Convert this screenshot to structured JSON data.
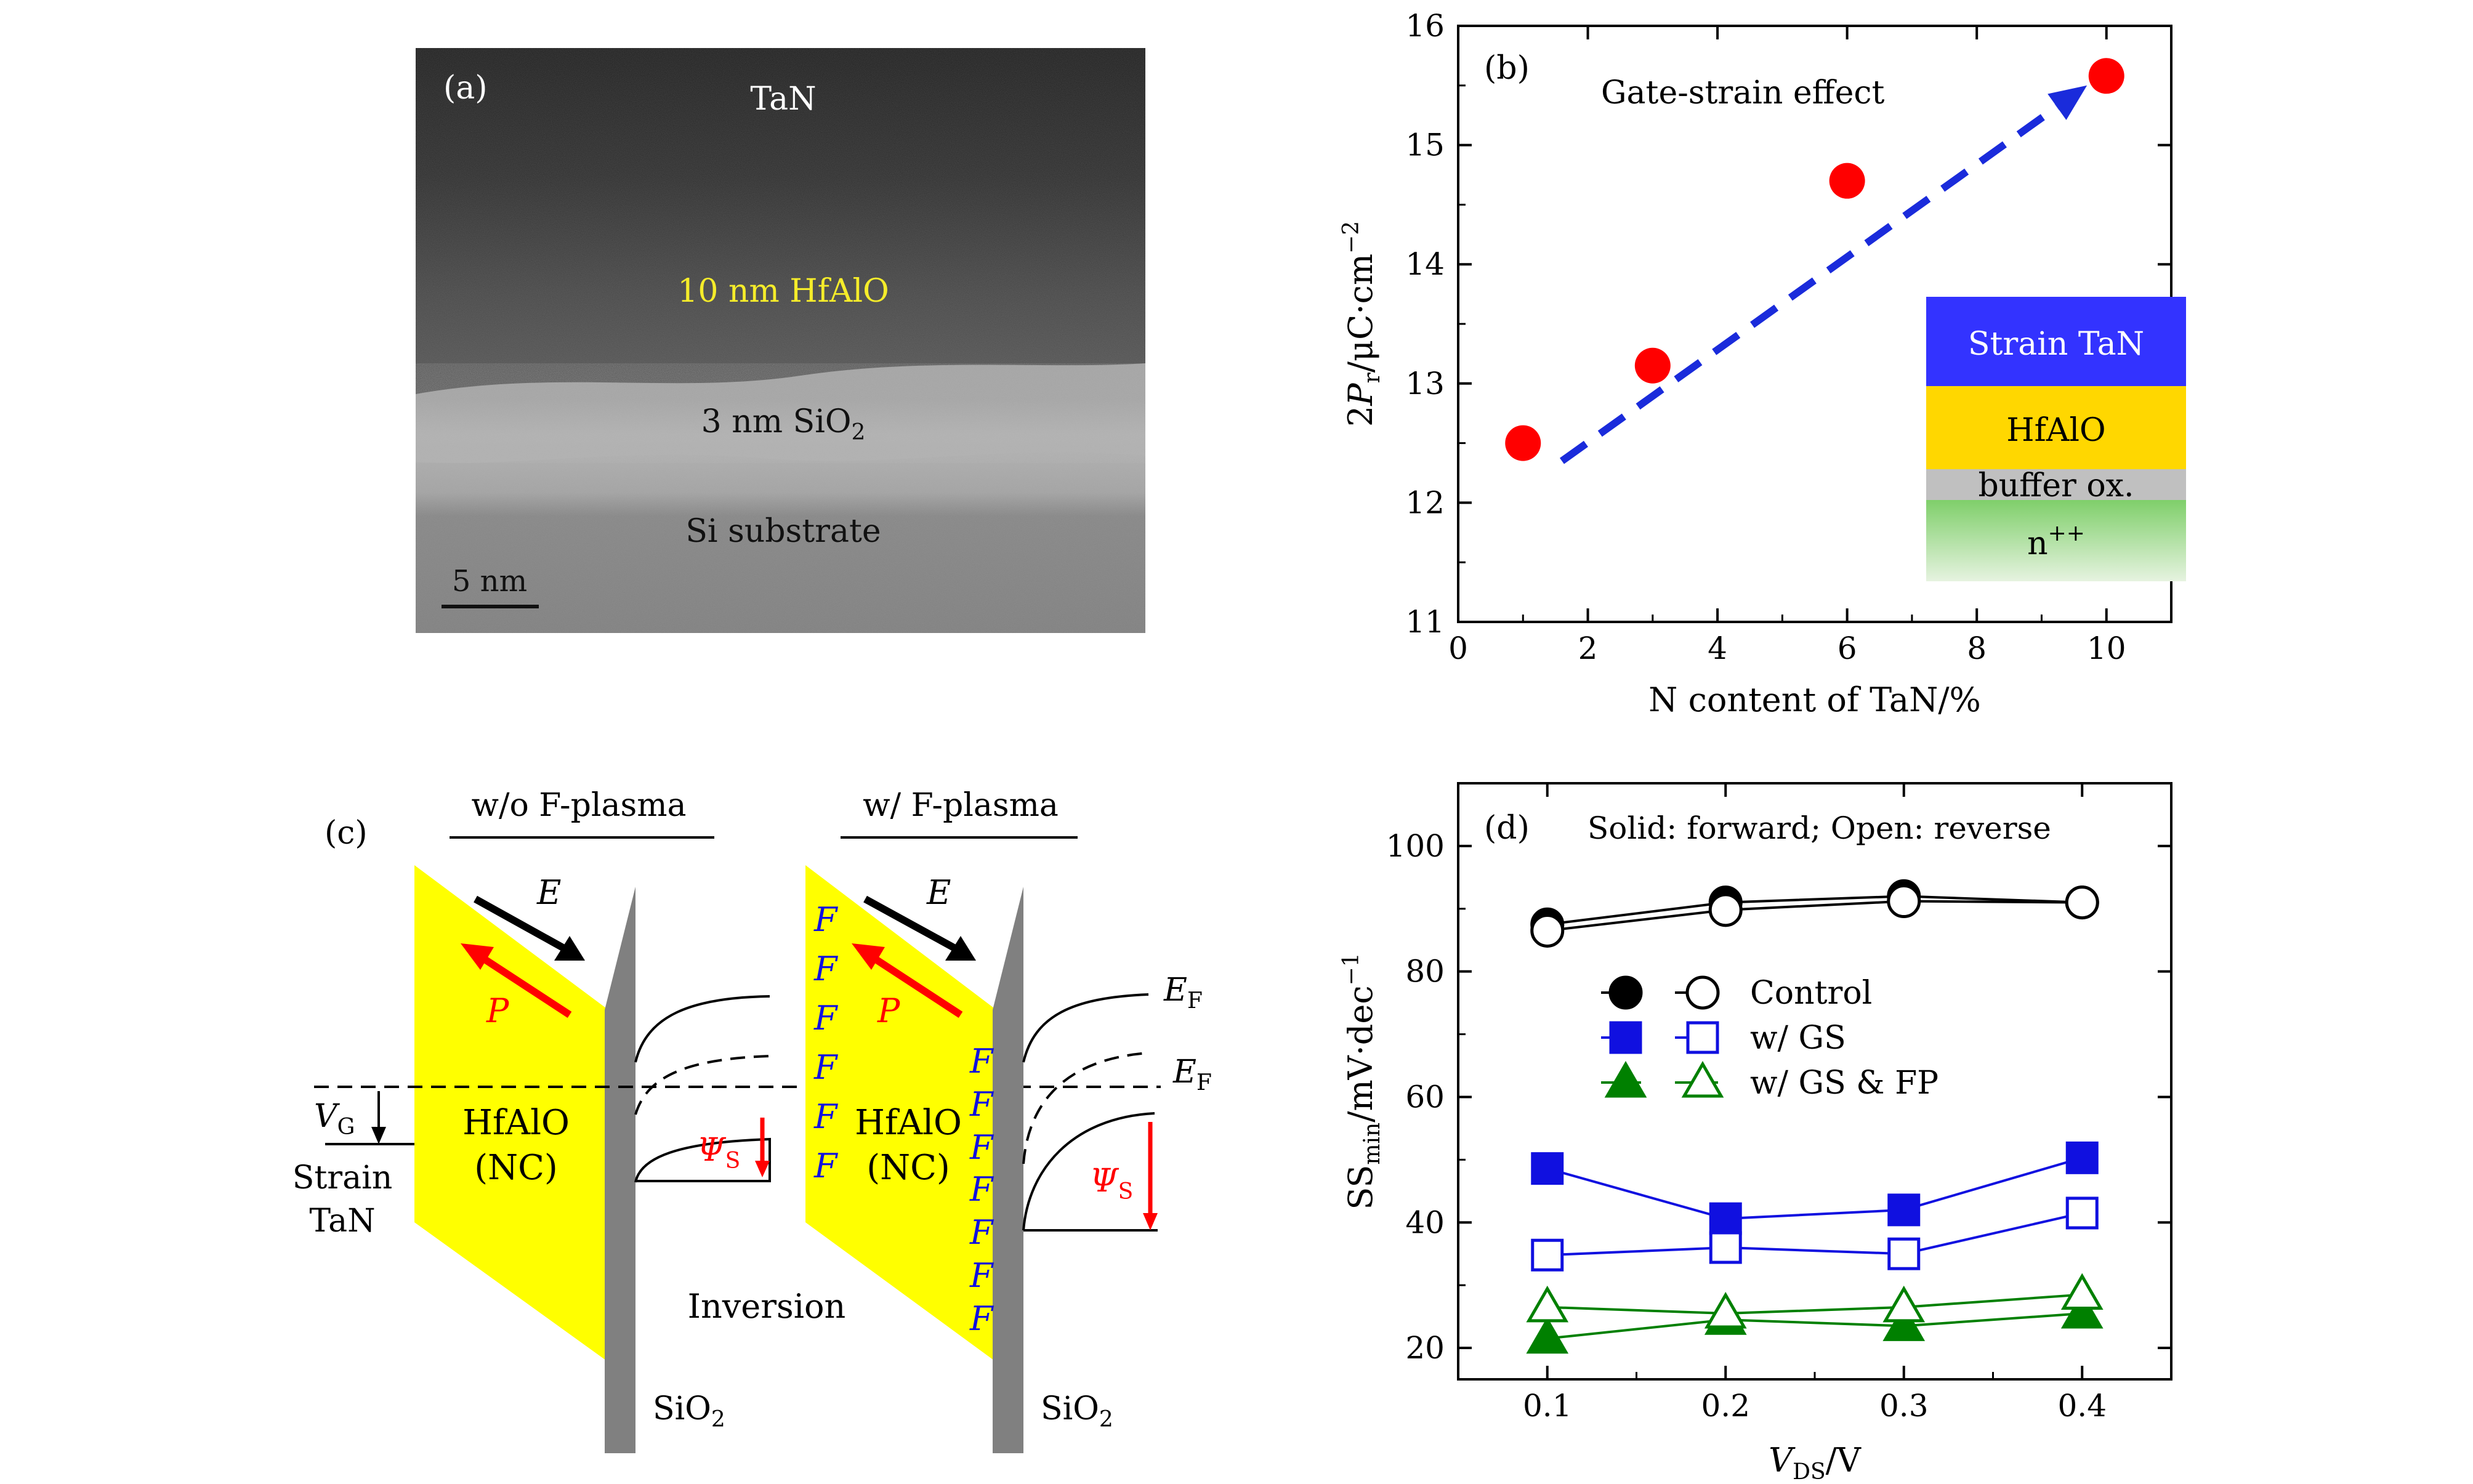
{
  "panel_a": {
    "label": "(a)",
    "layers": [
      "TaN",
      "10 nm HfAlO",
      "3 nm SiO",
      "Si substrate"
    ],
    "sio2_subscript": "2",
    "scale_bar": "5 nm",
    "colors": {
      "label": "#ffffff",
      "hfalo": "#f5ec2a",
      "bg_top": "#262626",
      "bg_hfalo": "#505050",
      "bg_sio2": "#aeaeae",
      "bg_si": "#858585"
    }
  },
  "panel_b": {
    "label": "(b)",
    "annotation": "Gate-strain effect",
    "inset": {
      "layers": [
        {
          "name": "inset-strain-tan",
          "text": "Strain TaN",
          "color": "#3333ff",
          "text_color": "#ffffff"
        },
        {
          "name": "inset-hfalo",
          "text": "HfAlO",
          "color": "#ffd700",
          "text_color": "#000000"
        },
        {
          "name": "inset-buffer-ox",
          "text": "buffer ox.",
          "color": "#c0c0c0",
          "text_color": "#000000"
        },
        {
          "name": "inset-n-plus-plus",
          "text": "n",
          "sup": "++",
          "color": "#9cd98c",
          "text_color": "#000000"
        }
      ]
    },
    "arrow_color": "#1a2bdb"
  },
  "panel_c": {
    "label": "(c)",
    "left_title": "w/o F-plasma",
    "right_title": "w/ F-plasma",
    "field_symbol": "E",
    "polarization_symbol": "P",
    "hfalo_label": "HfAlO",
    "nc_label": "(NC)",
    "vg_label": "V",
    "vg_sub": "G",
    "strain_label": "Strain",
    "tan_label": "TaN",
    "psi_label": "Ψ",
    "psi_sub": "S",
    "ef_label": "E",
    "ef_sub": "F",
    "inversion_label": "Inversion",
    "sio2_label": "SiO",
    "sio2_sub": "2",
    "f_char": "F",
    "colors": {
      "ferro": "#ffff00",
      "oxide": "#808080",
      "polarization": "#ff0000",
      "fluorine": "#1010e0"
    }
  },
  "chart_data": [
    {
      "type": "scatter",
      "panel": "b",
      "x": [
        1,
        3,
        6,
        10
      ],
      "y": [
        12.5,
        13.15,
        14.7,
        15.58
      ],
      "xlabel": "N content of TaN/%",
      "ylabel_parts": [
        "2",
        "P",
        "r",
        "/μC·cm",
        "−2"
      ],
      "xlim": [
        0,
        11
      ],
      "ylim": [
        11,
        16
      ],
      "xticks": [
        0,
        2,
        4,
        6,
        8,
        10
      ],
      "yticks": [
        11,
        12,
        13,
        14,
        15,
        16
      ],
      "trend_arrow": {
        "from": [
          1.6,
          12.35
        ],
        "to": [
          9.7,
          15.5
        ]
      },
      "marker_color": "#ff0000",
      "grid": false
    },
    {
      "type": "line",
      "panel": "d",
      "annotation": "Solid: forward; Open: reverse",
      "x": [
        0.1,
        0.2,
        0.3,
        0.4
      ],
      "xticks": [
        0.1,
        0.2,
        0.3,
        0.4
      ],
      "xlim": [
        0.05,
        0.45
      ],
      "ylim": [
        15,
        110
      ],
      "yticks": [
        20,
        40,
        60,
        80,
        100
      ],
      "xlabel_parts": [
        "V",
        "DS",
        "/V"
      ],
      "ylabel_parts": [
        "SS",
        "min",
        "/mV·dec",
        "−1"
      ],
      "grid": false,
      "legend_placement": "center-left",
      "series": [
        {
          "name": "Control",
          "marker": "circle",
          "fill": "solid",
          "color": "#000000",
          "values": [
            87.5,
            91,
            92,
            91
          ]
        },
        {
          "name": "Control",
          "marker": "circle",
          "fill": "open",
          "color": "#000000",
          "values": [
            86.5,
            89.8,
            91.2,
            91
          ]
        },
        {
          "name": "w/ GS",
          "marker": "square",
          "fill": "solid",
          "color": "#1010e0",
          "values": [
            48.6,
            40.6,
            42,
            50.3
          ]
        },
        {
          "name": "w/ GS",
          "marker": "square",
          "fill": "open",
          "color": "#1010e0",
          "values": [
            34.8,
            36,
            35,
            41.5
          ]
        },
        {
          "name": "w/ GS & FP",
          "marker": "triangle",
          "fill": "solid",
          "color": "#008000",
          "values": [
            21.5,
            24.5,
            23.5,
            25.5
          ]
        },
        {
          "name": "w/ GS & FP",
          "marker": "triangle",
          "fill": "open",
          "color": "#008000",
          "values": [
            26.5,
            25.5,
            26.5,
            28.5
          ]
        }
      ],
      "legend": [
        {
          "label": "Control",
          "marker": "circle",
          "color": "#000000"
        },
        {
          "label": "w/ GS",
          "marker": "square",
          "color": "#1010e0"
        },
        {
          "label": "w/ GS & FP",
          "marker": "triangle",
          "color": "#008000"
        }
      ]
    }
  ]
}
